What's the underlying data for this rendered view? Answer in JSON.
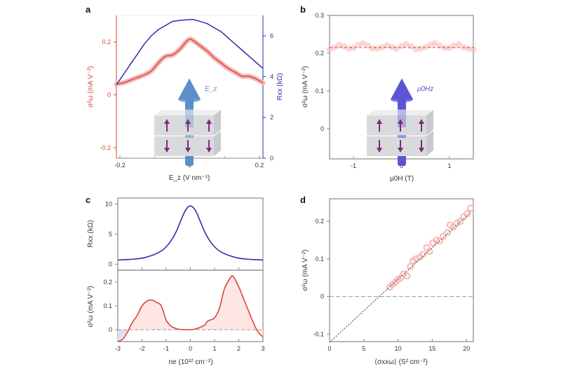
{
  "figure": {
    "panel_labels": [
      "a",
      "b",
      "c",
      "d"
    ]
  },
  "colors": {
    "red": "#d9443a",
    "red_band": "#f6b8b4",
    "blue": "#2b2fa8",
    "gray": "#888888",
    "dash": "#555555",
    "fill_pos": "#fde3e0",
    "fill_neg": "#dcdff5",
    "ez_arrow": "#5b8fc9",
    "h_arrow": "#5a55d6",
    "spin_arrow": "#7a2c7a",
    "slab": "#d9dadc"
  },
  "chart_data": [
    {
      "panel": "a",
      "type": "line",
      "xlabel": "E_z (V nm⁻¹)",
      "xlabel_main": "E",
      "xlabel_sub": "z",
      "xlabel_unit": " (V nm",
      "xlabel_sup": "−1",
      "xlabel_end": ")",
      "ylabel_left": "σ²ω (mA V⁻²)",
      "ylabel_right": "Rxx (kΩ)",
      "xlim": [
        -0.21,
        0.21
      ],
      "ylim_left": [
        -0.24,
        0.3
      ],
      "ylim_right": [
        0,
        7
      ],
      "xticks": [
        -0.2,
        0,
        0.2
      ],
      "xtick_labels": [
        "-0.2",
        "0",
        "0.2"
      ],
      "xminor": [
        -0.1,
        0.1
      ],
      "yticks_left": [
        -0.2,
        0,
        0.2
      ],
      "ytick_labels_left": [
        "-0.2",
        "0",
        "0.2"
      ],
      "yticks_right": [
        0,
        2,
        4,
        6
      ],
      "ytick_labels_right": [
        "0",
        "2",
        "4",
        "6"
      ],
      "inset_label": "E_z",
      "series": [
        {
          "name": "σ²ω",
          "axis": "left",
          "color": "red",
          "x": [
            -0.21,
            -0.19,
            -0.17,
            -0.15,
            -0.13,
            -0.11,
            -0.09,
            -0.07,
            -0.05,
            -0.03,
            -0.01,
            0,
            0.01,
            0.03,
            0.05,
            0.07,
            0.09,
            0.11,
            0.13,
            0.15,
            0.17,
            0.19,
            0.21
          ],
          "y": [
            0.04,
            0.045,
            0.055,
            0.065,
            0.075,
            0.09,
            0.12,
            0.145,
            0.15,
            0.17,
            0.2,
            0.21,
            0.205,
            0.185,
            0.165,
            0.14,
            0.12,
            0.1,
            0.085,
            0.07,
            0.07,
            0.06,
            0.045
          ]
        },
        {
          "name": "Rxx",
          "axis": "right",
          "color": "blue",
          "x": [
            -0.21,
            -0.19,
            -0.17,
            -0.15,
            -0.13,
            -0.11,
            -0.09,
            -0.07,
            -0.05,
            -0.03,
            -0.01,
            0.01,
            0.03,
            0.05,
            0.07,
            0.09,
            0.11,
            0.13,
            0.15,
            0.17,
            0.19,
            0.21
          ],
          "y": [
            3.6,
            4.1,
            4.6,
            5.1,
            5.6,
            6.0,
            6.3,
            6.5,
            6.7,
            6.75,
            6.78,
            6.8,
            6.7,
            6.6,
            6.4,
            6.2,
            5.9,
            5.6,
            5.3,
            5.0,
            4.7,
            4.4
          ]
        }
      ]
    },
    {
      "panel": "b",
      "type": "scatter",
      "xlabel": "μ0H (T)",
      "ylabel": "σ²ω (mA V⁻²)",
      "xlim": [
        -1.5,
        1.5
      ],
      "ylim": [
        -0.08,
        0.3
      ],
      "xticks": [
        -1,
        0,
        1
      ],
      "xtick_labels": [
        "-1",
        "0",
        "1"
      ],
      "yticks": [
        0,
        0.1,
        0.2,
        0.3
      ],
      "ytick_labels": [
        "0",
        "0.1",
        "0.2",
        "0.3"
      ],
      "reference_line": 0.215,
      "inset_label": "μ0Hz",
      "series": [
        {
          "name": "σ²ω",
          "x": [
            -1.5,
            -1.4,
            -1.3,
            -1.2,
            -1.1,
            -1.0,
            -0.9,
            -0.8,
            -0.7,
            -0.6,
            -0.5,
            -0.4,
            -0.3,
            -0.2,
            -0.1,
            0,
            0.1,
            0.2,
            0.3,
            0.4,
            0.5,
            0.6,
            0.7,
            0.8,
            0.9,
            1.0,
            1.1,
            1.2,
            1.3,
            1.4,
            1.5
          ],
          "y": [
            0.21,
            0.215,
            0.222,
            0.218,
            0.212,
            0.214,
            0.222,
            0.226,
            0.22,
            0.213,
            0.212,
            0.216,
            0.221,
            0.216,
            0.212,
            0.219,
            0.224,
            0.218,
            0.211,
            0.212,
            0.216,
            0.222,
            0.226,
            0.22,
            0.214,
            0.214,
            0.22,
            0.224,
            0.216,
            0.212,
            0.21
          ]
        }
      ]
    },
    {
      "panel": "c",
      "type": "line",
      "xlabel": "ne (10¹² cm⁻²)",
      "xlim": [
        -3,
        3
      ],
      "xticks": [
        -3,
        -2,
        -1,
        0,
        1,
        2,
        3
      ],
      "xtick_labels": [
        "-3",
        "-2",
        "-1",
        "0",
        "1",
        "2",
        "3"
      ],
      "top": {
        "ylabel": "Rxx (kΩ)",
        "ylim": [
          -1,
          11
        ],
        "yticks": [
          0,
          5,
          10
        ],
        "ytick_labels": [
          "0",
          "5",
          "10"
        ],
        "series": [
          {
            "name": "Rxx",
            "color": "blue",
            "x": [
              -3,
              -2.5,
              -2,
              -1.5,
              -1.2,
              -1,
              -0.8,
              -0.6,
              -0.4,
              -0.2,
              0,
              0.2,
              0.4,
              0.6,
              0.8,
              1,
              1.2,
              1.5,
              2,
              2.5,
              3
            ],
            "y": [
              0.7,
              0.8,
              1.0,
              1.6,
              2.2,
              2.9,
              3.9,
              5.3,
              7.2,
              9.0,
              9.7,
              9.0,
              7.2,
              5.3,
              3.9,
              2.9,
              2.2,
              1.6,
              1.0,
              0.8,
              0.7
            ]
          }
        ]
      },
      "bottom": {
        "ylabel": "σ²ω (mA V⁻²)",
        "ylim": [
          -0.05,
          0.25
        ],
        "yticks": [
          0,
          0.1,
          0.2
        ],
        "ytick_labels": [
          "0",
          "0.1",
          "0.2"
        ],
        "series": [
          {
            "name": "σ²ω",
            "color": "red",
            "x": [
              -3,
              -2.8,
              -2.6,
              -2.4,
              -2.2,
              -2,
              -1.8,
              -1.6,
              -1.4,
              -1.2,
              -1,
              -0.8,
              -0.6,
              -0.4,
              -0.2,
              0,
              0.2,
              0.4,
              0.6,
              0.7,
              0.8,
              1,
              1.2,
              1.4,
              1.6,
              1.7,
              1.8,
              2,
              2.2,
              2.4,
              2.6,
              2.8,
              3
            ],
            "y": [
              -0.05,
              -0.04,
              -0.01,
              0.03,
              0.06,
              0.1,
              0.12,
              0.125,
              0.115,
              0.1,
              0.04,
              0.015,
              0.005,
              0.001,
              0,
              0,
              0.003,
              0.01,
              0.02,
              0.035,
              0.04,
              0.05,
              0.09,
              0.17,
              0.21,
              0.225,
              0.22,
              0.18,
              0.13,
              0.08,
              0.03,
              -0.01,
              -0.03
            ]
          }
        ]
      }
    },
    {
      "panel": "d",
      "type": "scatter",
      "xlabel": "⟨σxxω⟩ (S² cm⁻²)",
      "ylabel": "σ²ω (mA V⁻²)",
      "xlim": [
        0,
        21
      ],
      "ylim": [
        -0.12,
        0.26
      ],
      "xticks": [
        0,
        5,
        10,
        15,
        20
      ],
      "xtick_labels": [
        "0",
        "5",
        "10",
        "15",
        "20"
      ],
      "yticks": [
        -0.1,
        0,
        0.1,
        0.2
      ],
      "ytick_labels": [
        "-0.1",
        "0",
        "0.1",
        "0.2"
      ],
      "fit_line": {
        "slope": 0.0168,
        "intercept": -0.122
      },
      "zero_line": 0,
      "series": [
        {
          "name": "data",
          "x": [
            8.8,
            9.2,
            9.6,
            10,
            10.4,
            10.8,
            11.3,
            11.8,
            12.2,
            12.6,
            13.2,
            13.6,
            14.2,
            14.6,
            15.1,
            15.6,
            16.1,
            16.6,
            17.2,
            17.6,
            18.1,
            18.6,
            19.1,
            19.6,
            20.1,
            20.6
          ],
          "y": [
            0.025,
            0.032,
            0.038,
            0.045,
            0.05,
            0.06,
            0.055,
            0.08,
            0.095,
            0.1,
            0.105,
            0.112,
            0.13,
            0.12,
            0.143,
            0.15,
            0.148,
            0.16,
            0.17,
            0.19,
            0.185,
            0.195,
            0.2,
            0.212,
            0.22,
            0.235
          ]
        }
      ]
    }
  ]
}
